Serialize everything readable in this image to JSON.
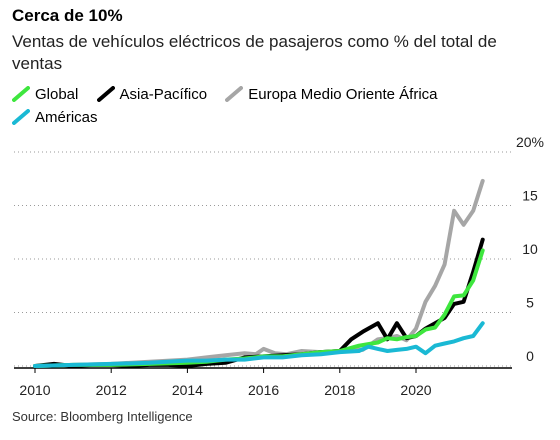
{
  "title": "Cerca de 10%",
  "subtitle": "Ventas de vehículos eléctricos de pasajeros como % del total de ventas",
  "source": "Source: Bloomberg Intelligence",
  "chart_data": {
    "type": "line",
    "title": "Cerca de 10%",
    "subtitle": "Ventas de vehículos eléctricos de pasajeros como % del total de ventas",
    "xlim": [
      2010,
      2022
    ],
    "ylim": [
      0,
      20
    ],
    "x_ticks": [
      "2010",
      "2012",
      "2014",
      "2016",
      "2018",
      "2020"
    ],
    "x_tick_values": [
      2010,
      2012,
      2014,
      2016,
      2018,
      2020
    ],
    "y_ticks": [
      "0",
      "5",
      "10",
      "15",
      "20%"
    ],
    "y_tick_values": [
      0,
      5,
      10,
      15,
      20
    ],
    "grid": "horizontal dotted",
    "legend_position": "top-left",
    "series": [
      {
        "name": "Europa Medio Oriente África",
        "color": "#a6a6a6",
        "x": [
          2010.0,
          2011.0,
          2012.0,
          2013.0,
          2014.0,
          2014.5,
          2015.0,
          2015.5,
          2015.8,
          2016.0,
          2016.3,
          2016.6,
          2017.0,
          2017.5,
          2018.0,
          2018.3,
          2018.6,
          2019.0,
          2019.25,
          2019.5,
          2019.75,
          2020.0,
          2020.25,
          2020.5,
          2020.75,
          2021.0,
          2021.25,
          2021.5,
          2021.75
        ],
        "y": [
          0.0,
          0.1,
          0.2,
          0.4,
          0.6,
          0.8,
          1.0,
          1.2,
          1.1,
          1.6,
          1.2,
          1.1,
          1.4,
          1.3,
          1.4,
          1.6,
          1.5,
          2.5,
          2.6,
          2.8,
          2.4,
          3.5,
          6.0,
          7.5,
          9.5,
          14.5,
          13.2,
          14.5,
          17.3
        ]
      },
      {
        "name": "Asia-Pacífico",
        "color": "#000000",
        "x": [
          2010.0,
          2010.5,
          2011.0,
          2011.5,
          2012.0,
          2012.5,
          2013.0,
          2013.5,
          2014.0,
          2014.5,
          2015.0,
          2015.5,
          2016.0,
          2016.5,
          2017.0,
          2017.5,
          2018.0,
          2018.3,
          2018.6,
          2019.0,
          2019.25,
          2019.5,
          2019.75,
          2020.0,
          2020.25,
          2020.5,
          2020.75,
          2021.0,
          2021.25,
          2021.5,
          2021.75
        ],
        "y": [
          0.0,
          0.2,
          0.0,
          0.1,
          0.1,
          0.0,
          0.1,
          0.1,
          0.0,
          0.2,
          0.3,
          0.8,
          0.9,
          1.0,
          1.1,
          1.3,
          1.4,
          2.5,
          3.2,
          4.0,
          2.5,
          4.0,
          2.6,
          2.8,
          3.5,
          4.0,
          4.5,
          5.8,
          6.0,
          8.8,
          11.8
        ]
      },
      {
        "name": "Global",
        "color": "#3ee63e",
        "x": [
          2010.0,
          2011.0,
          2012.0,
          2013.0,
          2014.0,
          2014.5,
          2015.0,
          2015.5,
          2016.0,
          2016.5,
          2017.0,
          2017.5,
          2018.0,
          2018.5,
          2019.0,
          2019.25,
          2019.5,
          2019.75,
          2020.0,
          2020.25,
          2020.5,
          2020.75,
          2021.0,
          2021.25,
          2021.5,
          2021.75
        ],
        "y": [
          0.0,
          0.1,
          0.1,
          0.2,
          0.3,
          0.4,
          0.6,
          0.7,
          0.9,
          0.9,
          1.1,
          1.3,
          1.4,
          1.9,
          2.2,
          2.6,
          2.5,
          2.7,
          2.8,
          3.4,
          3.6,
          4.8,
          6.5,
          6.6,
          8.0,
          10.8
        ]
      },
      {
        "name": "Américas",
        "color": "#1ab9d4",
        "x": [
          2010.0,
          2011.0,
          2012.0,
          2013.0,
          2014.0,
          2014.5,
          2015.0,
          2015.5,
          2016.0,
          2016.5,
          2017.0,
          2017.5,
          2018.0,
          2018.5,
          2018.75,
          2019.0,
          2019.25,
          2019.5,
          2019.75,
          2020.0,
          2020.25,
          2020.5,
          2020.75,
          2021.0,
          2021.25,
          2021.5,
          2021.75
        ],
        "y": [
          0.0,
          0.1,
          0.2,
          0.3,
          0.5,
          0.5,
          0.6,
          0.6,
          0.8,
          0.8,
          1.0,
          1.1,
          1.3,
          1.4,
          1.8,
          1.6,
          1.4,
          1.5,
          1.6,
          1.8,
          1.2,
          1.9,
          2.1,
          2.3,
          2.6,
          2.8,
          4.0
        ]
      }
    ],
    "legend_order": [
      "Global",
      "Asia-Pacífico",
      "Europa Medio Oriente África",
      "Américas"
    ]
  }
}
